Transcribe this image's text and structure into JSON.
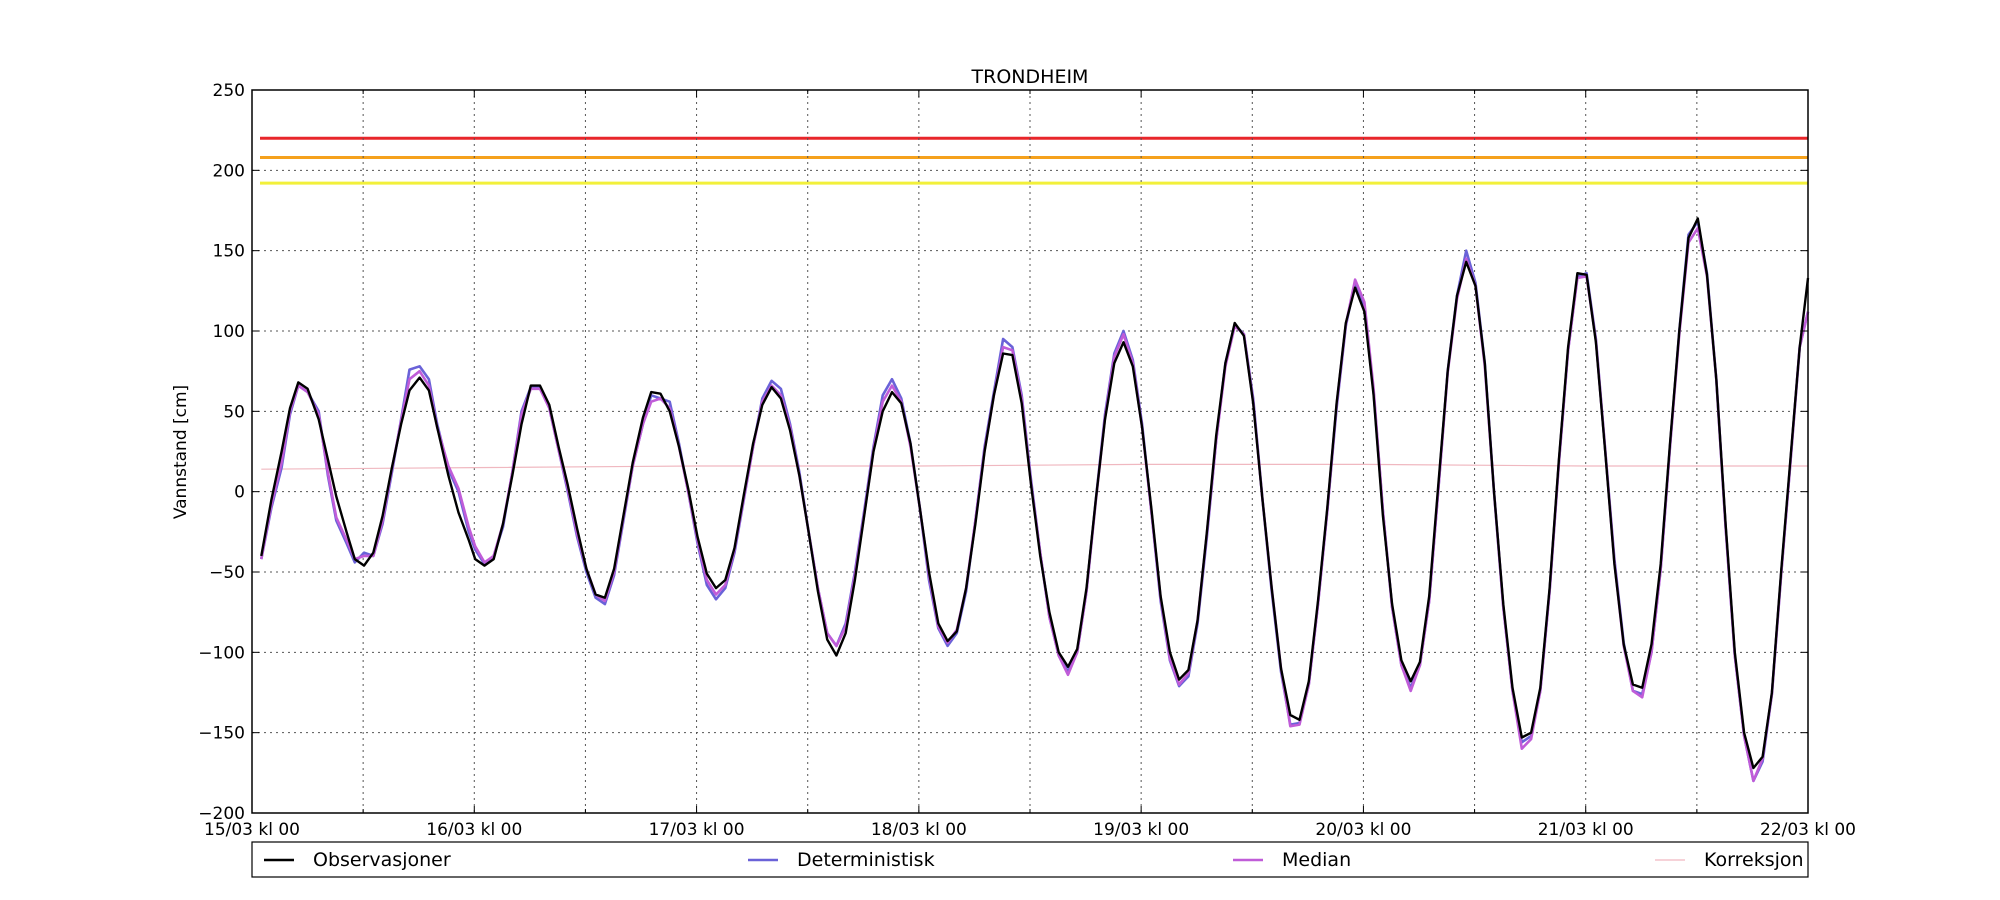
{
  "chart_data": {
    "type": "line",
    "title": "TRONDHEIM",
    "xlabel": "",
    "ylabel": "Vannstand [cm]",
    "ylim": [
      -200,
      250
    ],
    "yticks": [
      -200,
      -150,
      -100,
      -50,
      0,
      50,
      100,
      150,
      200,
      250
    ],
    "xlim": [
      0,
      168
    ],
    "x_unit": "hours since 15/03 kl 00",
    "xticks": [
      {
        "x": 0,
        "label": "15/03 kl 00"
      },
      {
        "x": 24,
        "label": "16/03 kl 00"
      },
      {
        "x": 48,
        "label": "17/03 kl 00"
      },
      {
        "x": 72,
        "label": "18/03 kl 00"
      },
      {
        "x": 96,
        "label": "19/03 kl 00"
      },
      {
        "x": 120,
        "label": "20/03 kl 00"
      },
      {
        "x": 144,
        "label": "21/03 kl 00"
      },
      {
        "x": 168,
        "label": "22/03 kl 00"
      }
    ],
    "minor_xticks": [
      12,
      36,
      60,
      84,
      108,
      132,
      156
    ],
    "grid": true,
    "legend_position": "bottom",
    "thresholds": [
      {
        "value": 220,
        "color": "#e8262a"
      },
      {
        "value": 208,
        "color": "#f5a11c"
      },
      {
        "value": 192,
        "color": "#f2f03a"
      }
    ],
    "series": [
      {
        "name": "Observasjoner",
        "color": "#000000",
        "x": [
          1,
          2.1,
          3.2,
          4.1,
          5.0,
          6.0,
          7.2,
          8.2,
          9.1,
          10.2,
          11.1,
          12.1,
          13.1,
          14.1,
          15.1,
          16.1,
          17.0,
          18.1,
          19.1,
          20.0,
          21.2,
          22.3,
          23.4,
          24.1,
          25.1,
          26.1,
          27.1,
          28.1,
          29.1,
          30.1,
          31.1,
          32.1,
          33.1,
          34.1,
          35.1,
          36.1,
          37.1,
          38.1,
          39.1,
          40.1,
          41.1,
          42.2,
          43.1,
          44.1,
          45.1,
          46.1,
          47.1,
          48.1,
          49.1,
          50.1,
          51.1,
          52.1,
          53.1,
          54.1,
          55.1,
          56.1,
          57.1,
          58.1,
          59.1,
          60.1,
          61.1,
          62.1,
          63.1,
          64.1,
          65.1,
          66.1,
          67.1,
          68.1,
          69.1,
          70.1,
          71.1,
          72.1,
          73.1,
          74.1,
          75.1,
          76.1,
          77.1,
          78.1,
          79.1,
          80.1,
          81.1,
          82.1,
          83.1,
          84.1,
          85.1,
          86.1,
          87.1,
          88.1,
          89.1,
          90.1,
          91.1,
          92.1,
          93.1,
          94.1,
          95.1,
          96.1,
          97.1,
          98.1,
          99.1,
          100.1,
          101.1,
          102.1,
          103.1,
          104.1,
          105.1,
          106.1,
          107.1,
          108.1,
          109.1,
          110.1,
          111.1,
          112.1,
          113.1,
          114.1,
          115.1,
          116.1,
          117.1,
          118.1,
          119.1,
          120.1,
          121.1,
          122.1,
          123.1,
          124.1,
          125.1,
          126.1,
          127.1,
          128.1,
          129.1,
          130.1,
          131.1,
          132.1,
          133.1,
          134.1,
          135.1,
          136.1,
          137.1,
          138.1,
          139.1,
          140.1,
          141.1,
          142.1,
          143.1,
          144.1,
          145.1,
          146.1,
          147.1,
          148.1,
          149.1,
          150.1,
          151.1,
          152.1,
          153.1,
          154.1,
          155.1,
          156.1,
          157.1,
          158.1,
          159.1,
          160.1,
          161.1,
          162.1,
          163.1,
          164.1,
          165.1,
          166.1,
          167.1,
          168
        ],
        "values": [
          -40,
          -5,
          25,
          52,
          68,
          64,
          45,
          20,
          -3,
          -25,
          -42,
          -46,
          -38,
          -15,
          15,
          42,
          63,
          71,
          63,
          40,
          10,
          -13,
          -30,
          -42,
          -46,
          -42,
          -20,
          10,
          42,
          66,
          66,
          54,
          28,
          4,
          -23,
          -48,
          -64,
          -66,
          -48,
          -15,
          18,
          46,
          62,
          61,
          50,
          28,
          2,
          -28,
          -51,
          -60,
          -55,
          -35,
          -2,
          30,
          54,
          65,
          58,
          38,
          10,
          -25,
          -62,
          -92,
          -102,
          -88,
          -55,
          -15,
          25,
          50,
          62,
          55,
          30,
          -10,
          -50,
          -82,
          -93,
          -87,
          -60,
          -20,
          25,
          60,
          86,
          85,
          55,
          5,
          -40,
          -75,
          -100,
          -109,
          -98,
          -60,
          -5,
          45,
          80,
          93,
          78,
          40,
          -10,
          -65,
          -100,
          -117,
          -111,
          -80,
          -25,
          35,
          80,
          105,
          97,
          55,
          -5,
          -60,
          -110,
          -139,
          -142,
          -118,
          -68,
          -10,
          55,
          105,
          127,
          112,
          60,
          -15,
          -70,
          -105,
          -118,
          -106,
          -65,
          5,
          75,
          122,
          143,
          128,
          80,
          0,
          -70,
          -122,
          -153,
          -150,
          -122,
          -60,
          20,
          90,
          136,
          135,
          93,
          25,
          -45,
          -95,
          -120,
          -122,
          -95,
          -45,
          30,
          100,
          158,
          170,
          135,
          70,
          -20,
          -100,
          -150,
          -172,
          -165,
          -125,
          -50,
          20,
          90,
          133
        ]
      },
      {
        "name": "Deterministisk",
        "color": "#6a62d8",
        "x": [
          1,
          2.1,
          3.2,
          4.1,
          5.0,
          6.0,
          7.2,
          8.2,
          9.1,
          10.2,
          11.1,
          12.1,
          13.1,
          14.1,
          15.1,
          16.1,
          17.0,
          18.1,
          19.1,
          20.0,
          21.2,
          22.3,
          23.4,
          24.1,
          25.1,
          26.1,
          27.1,
          28.1,
          29.1,
          30.1,
          31.1,
          32.1,
          33.1,
          34.1,
          35.1,
          36.1,
          37.1,
          38.1,
          39.1,
          40.1,
          41.1,
          42.2,
          43.1,
          44.1,
          45.1,
          46.1,
          47.1,
          48.1,
          49.1,
          50.1,
          51.1,
          52.1,
          53.1,
          54.1,
          55.1,
          56.1,
          57.1,
          58.1,
          59.1,
          60.1,
          61.1,
          62.1,
          63.1,
          64.1,
          65.1,
          66.1,
          67.1,
          68.1,
          69.1,
          70.1,
          71.1,
          72.1,
          73.1,
          74.1,
          75.1,
          76.1,
          77.1,
          78.1,
          79.1,
          80.1,
          81.1,
          82.1,
          83.1,
          84.1,
          85.1,
          86.1,
          87.1,
          88.1,
          89.1,
          90.1,
          91.1,
          92.1,
          93.1,
          94.1,
          95.1,
          96.1,
          97.1,
          98.1,
          99.1,
          100.1,
          101.1,
          102.1,
          103.1,
          104.1,
          105.1,
          106.1,
          107.1,
          108.1,
          109.1,
          110.1,
          111.1,
          112.1,
          113.1,
          114.1,
          115.1,
          116.1,
          117.1,
          118.1,
          119.1,
          120.1,
          121.1,
          122.1,
          123.1,
          124.1,
          125.1,
          126.1,
          127.1,
          128.1,
          129.1,
          130.1,
          131.1,
          132.1,
          133.1,
          134.1,
          135.1,
          136.1,
          137.1,
          138.1,
          139.1,
          140.1,
          141.1,
          142.1,
          143.1,
          144.1,
          145.1,
          146.1,
          147.1,
          148.1,
          149.1,
          150.1,
          151.1,
          152.1,
          153.1,
          154.1,
          155.1,
          156.1,
          157.1,
          158.1,
          159.1,
          160.1,
          161.1,
          162.1,
          163.1,
          164.1,
          165.1,
          166.1,
          167.1,
          168
        ],
        "values": [
          -42,
          -10,
          15,
          48,
          66,
          62,
          50,
          10,
          -18,
          -32,
          -44,
          -38,
          -40,
          -20,
          12,
          45,
          76,
          78,
          70,
          42,
          14,
          0,
          -25,
          -36,
          -45,
          -40,
          -22,
          12,
          50,
          65,
          65,
          52,
          26,
          0,
          -28,
          -50,
          -66,
          -70,
          -52,
          -18,
          16,
          42,
          60,
          58,
          56,
          30,
          0,
          -32,
          -58,
          -67,
          -60,
          -38,
          -5,
          28,
          58,
          69,
          64,
          42,
          12,
          -25,
          -60,
          -88,
          -96,
          -82,
          -50,
          -12,
          28,
          60,
          70,
          58,
          30,
          -10,
          -55,
          -85,
          -96,
          -88,
          -62,
          -18,
          28,
          62,
          95,
          90,
          60,
          8,
          -38,
          -78,
          -102,
          -112,
          -100,
          -62,
          -5,
          48,
          86,
          100,
          82,
          42,
          -12,
          -68,
          -105,
          -121,
          -115,
          -82,
          -28,
          32,
          80,
          104,
          98,
          58,
          -5,
          -62,
          -112,
          -145,
          -144,
          -120,
          -70,
          -12,
          52,
          103,
          131,
          115,
          62,
          -12,
          -72,
          -108,
          -122,
          -108,
          -68,
          2,
          75,
          122,
          150,
          130,
          80,
          0,
          -72,
          -124,
          -156,
          -152,
          -124,
          -62,
          18,
          88,
          134,
          136,
          95,
          26,
          -42,
          -94,
          -124,
          -126,
          -100,
          -48,
          28,
          100,
          160,
          168,
          136,
          70,
          -22,
          -102,
          -152,
          -180,
          -168,
          -126,
          -52,
          18,
          90,
          112
        ]
      },
      {
        "name": "Median",
        "color": "#c05cd8",
        "x": [
          1,
          2.1,
          3.2,
          4.1,
          5.0,
          6.0,
          7.2,
          8.2,
          9.1,
          10.2,
          11.1,
          12.1,
          13.1,
          14.1,
          15.1,
          16.1,
          17.0,
          18.1,
          19.1,
          20.0,
          21.2,
          22.3,
          23.4,
          24.1,
          25.1,
          26.1,
          27.1,
          28.1,
          29.1,
          30.1,
          31.1,
          32.1,
          33.1,
          34.1,
          35.1,
          36.1,
          37.1,
          38.1,
          39.1,
          40.1,
          41.1,
          42.2,
          43.1,
          44.1,
          45.1,
          46.1,
          47.1,
          48.1,
          49.1,
          50.1,
          51.1,
          52.1,
          53.1,
          54.1,
          55.1,
          56.1,
          57.1,
          58.1,
          59.1,
          60.1,
          61.1,
          62.1,
          63.1,
          64.1,
          65.1,
          66.1,
          67.1,
          68.1,
          69.1,
          70.1,
          71.1,
          72.1,
          73.1,
          74.1,
          75.1,
          76.1,
          77.1,
          78.1,
          79.1,
          80.1,
          81.1,
          82.1,
          83.1,
          84.1,
          85.1,
          86.1,
          87.1,
          88.1,
          89.1,
          90.1,
          91.1,
          92.1,
          93.1,
          94.1,
          95.1,
          96.1,
          97.1,
          98.1,
          99.1,
          100.1,
          101.1,
          102.1,
          103.1,
          104.1,
          105.1,
          106.1,
          107.1,
          108.1,
          109.1,
          110.1,
          111.1,
          112.1,
          113.1,
          114.1,
          115.1,
          116.1,
          117.1,
          118.1,
          119.1,
          120.1,
          121.1,
          122.1,
          123.1,
          124.1,
          125.1,
          126.1,
          127.1,
          128.1,
          129.1,
          130.1,
          131.1,
          132.1,
          133.1,
          134.1,
          135.1,
          136.1,
          137.1,
          138.1,
          139.1,
          140.1,
          141.1,
          142.1,
          143.1,
          144.1,
          145.1,
          146.1,
          147.1,
          148.1,
          149.1,
          150.1,
          151.1,
          152.1,
          153.1,
          154.1,
          155.1,
          156.1,
          157.1,
          158.1,
          159.1,
          160.1,
          161.1,
          162.1,
          163.1,
          164.1,
          165.1,
          166.1,
          167.1,
          168
        ],
        "values": [
          -42,
          -8,
          18,
          50,
          66,
          62,
          48,
          12,
          -16,
          -30,
          -42,
          -40,
          -40,
          -18,
          14,
          44,
          70,
          75,
          66,
          40,
          16,
          2,
          -22,
          -34,
          -44,
          -40,
          -20,
          12,
          48,
          64,
          64,
          52,
          26,
          2,
          -26,
          -48,
          -64,
          -68,
          -50,
          -16,
          16,
          42,
          56,
          58,
          52,
          28,
          0,
          -30,
          -55,
          -64,
          -58,
          -36,
          -4,
          28,
          56,
          66,
          60,
          40,
          10,
          -25,
          -60,
          -88,
          -96,
          -84,
          -52,
          -14,
          26,
          56,
          66,
          56,
          28,
          -10,
          -52,
          -84,
          -94,
          -86,
          -60,
          -18,
          26,
          60,
          90,
          88,
          58,
          6,
          -38,
          -78,
          -102,
          -114,
          -100,
          -62,
          -6,
          46,
          84,
          98,
          80,
          40,
          -12,
          -66,
          -104,
          -120,
          -113,
          -80,
          -26,
          32,
          78,
          103,
          98,
          56,
          -5,
          -60,
          -110,
          -146,
          -145,
          -120,
          -70,
          -12,
          54,
          104,
          132,
          118,
          64,
          -12,
          -72,
          -108,
          -124,
          -108,
          -68,
          2,
          74,
          120,
          145,
          128,
          78,
          0,
          -72,
          -124,
          -160,
          -154,
          -124,
          -62,
          18,
          88,
          133,
          134,
          94,
          26,
          -44,
          -96,
          -124,
          -128,
          -100,
          -48,
          28,
          98,
          155,
          164,
          134,
          70,
          -22,
          -102,
          -152,
          -180,
          -166,
          -126,
          -52,
          18,
          90,
          112
        ]
      },
      {
        "name": "Korreksjon",
        "color": "#f0b8c0",
        "x": [
          1,
          24,
          48,
          72,
          96,
          120,
          144,
          168
        ],
        "values": [
          14,
          15,
          16,
          16,
          17,
          17,
          16,
          16
        ]
      }
    ]
  }
}
